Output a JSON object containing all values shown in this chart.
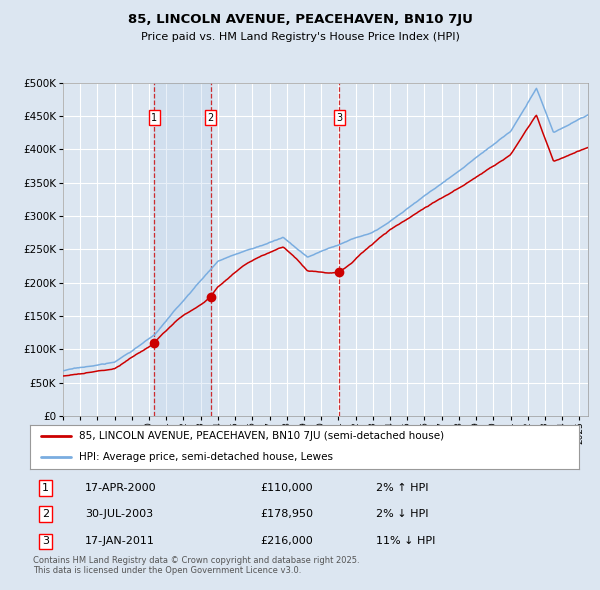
{
  "title": "85, LINCOLN AVENUE, PEACEHAVEN, BN10 7JU",
  "subtitle": "Price paid vs. HM Land Registry's House Price Index (HPI)",
  "ylim": [
    0,
    500000
  ],
  "yticks": [
    0,
    50000,
    100000,
    150000,
    200000,
    250000,
    300000,
    350000,
    400000,
    450000,
    500000
  ],
  "ytick_labels": [
    "£0",
    "£50K",
    "£100K",
    "£150K",
    "£200K",
    "£250K",
    "£300K",
    "£350K",
    "£400K",
    "£450K",
    "£500K"
  ],
  "background_color": "#dce6f1",
  "plot_bg_color": "#dce6f1",
  "grid_color": "#ffffff",
  "red_line_color": "#cc0000",
  "blue_line_color": "#7aade0",
  "sale1_date": 2000.29,
  "sale1_price": 110000,
  "sale2_date": 2003.58,
  "sale2_price": 178950,
  "sale3_date": 2011.04,
  "sale3_price": 216000,
  "legend_red_label": "85, LINCOLN AVENUE, PEACEHAVEN, BN10 7JU (semi-detached house)",
  "legend_blue_label": "HPI: Average price, semi-detached house, Lewes",
  "table_rows": [
    {
      "num": "1",
      "date": "17-APR-2000",
      "price": "£110,000",
      "change": "2% ↑ HPI"
    },
    {
      "num": "2",
      "date": "30-JUL-2003",
      "price": "£178,950",
      "change": "2% ↓ HPI"
    },
    {
      "num": "3",
      "date": "17-JAN-2011",
      "price": "£216,000",
      "change": "11% ↓ HPI"
    }
  ],
  "footnote": "Contains HM Land Registry data © Crown copyright and database right 2025.\nThis data is licensed under the Open Government Licence v3.0.",
  "shade_start": 2000.29,
  "shade_end": 2003.58,
  "xlim_start": 1995.0,
  "xlim_end": 2025.5
}
